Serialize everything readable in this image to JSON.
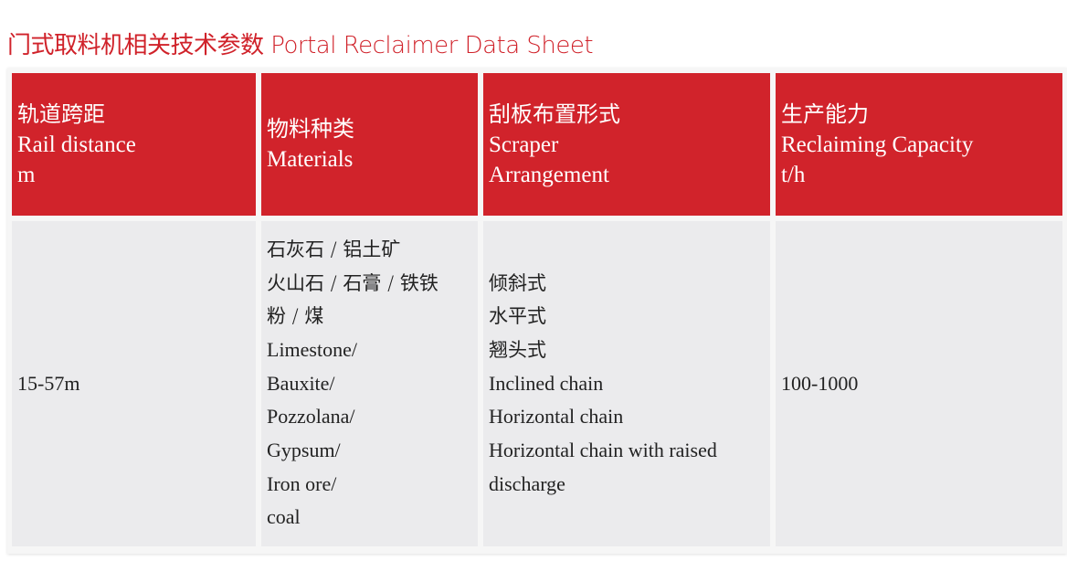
{
  "title": "门式取料机相关技术参数 Portal Reclaimer Data Sheet",
  "colors": {
    "accent": "#d1232b",
    "body_cell": "#ebebed"
  },
  "headers": [
    {
      "zh": "轨道跨距",
      "en": [
        "Rail distance",
        "m"
      ]
    },
    {
      "zh": "物料种类",
      "en": [
        "Materials"
      ]
    },
    {
      "zh": "刮板布置形式",
      "en": [
        "Scraper",
        "Arrangement"
      ]
    },
    {
      "zh": "生产能力",
      "en": [
        "Reclaiming Capacity",
        "t/h"
      ]
    }
  ],
  "row": {
    "rail_distance": "15-57m",
    "materials_zh": [
      "石灰石 / 铝土矿",
      "火山石 / 石膏 / 铁铁",
      "粉 / 煤"
    ],
    "materials_en": [
      "Limestone/",
      "Bauxite/",
      "Pozzolana/",
      "Gypsum/",
      "Iron ore/",
      "coal"
    ],
    "scraper_zh": [
      "倾斜式",
      "水平式",
      "翘头式"
    ],
    "scraper_en": [
      "Inclined chain",
      "Horizontal chain",
      "Horizontal chain with raised",
      "discharge"
    ],
    "capacity": "100-1000"
  }
}
